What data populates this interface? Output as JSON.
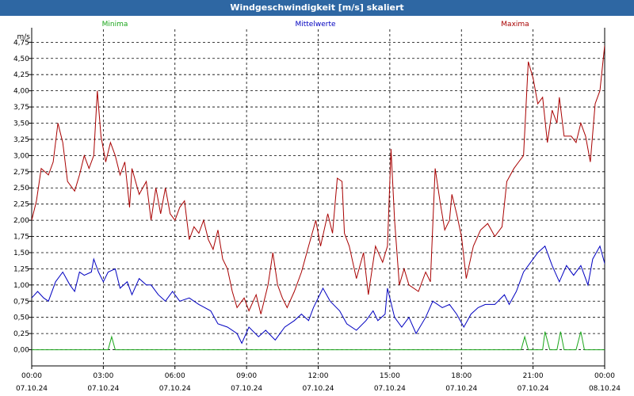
{
  "title": "Windgeschwindigkeit [m/s] skaliert",
  "colors": {
    "titlebar": "#2e67a3",
    "minima": "#1aa51a",
    "mittelwerte": "#0000c0",
    "maxima": "#a80000"
  },
  "chart_data": {
    "type": "line",
    "title": "Windgeschwindigkeit [m/s] skaliert",
    "ylabel": "m/s",
    "ylim": [
      -0.25,
      4.95
    ],
    "xlim": [
      0,
      24
    ],
    "grid": true,
    "legend_placement": "top",
    "y_ticks": [
      0,
      0.25,
      0.5,
      0.75,
      1.0,
      1.25,
      1.5,
      1.75,
      2.0,
      2.25,
      2.5,
      2.75,
      3.0,
      3.25,
      3.5,
      3.75,
      4.0,
      4.25,
      4.5,
      4.75
    ],
    "y_tick_labels": [
      "0,00",
      "0,25",
      "0,50",
      "0,75",
      "1,00",
      "1,25",
      "1,50",
      "1,75",
      "2,00",
      "2,25",
      "2,50",
      "2,75",
      "3,00",
      "3,25",
      "3,50",
      "3,75",
      "4,00",
      "4,25",
      "4,50",
      "4,75"
    ],
    "x_ticks": [
      0,
      3,
      6,
      9,
      12,
      15,
      18,
      21,
      24
    ],
    "x_tick_labels": [
      [
        "00:00",
        "07.10.24"
      ],
      [
        "03:00",
        "07.10.24"
      ],
      [
        "06:00",
        "07.10.24"
      ],
      [
        "09:00",
        "07.10.24"
      ],
      [
        "12:00",
        "07.10.24"
      ],
      [
        "15:00",
        "07.10.24"
      ],
      [
        "18:00",
        "07.10.24"
      ],
      [
        "21:00",
        "07.10.24"
      ],
      [
        "00:00",
        "08.10.24"
      ]
    ],
    "series": [
      {
        "name": "Minima",
        "color": "#1aa51a",
        "points": [
          [
            0,
            0
          ],
          [
            3.2,
            0
          ],
          [
            3.35,
            0.2
          ],
          [
            3.5,
            0
          ],
          [
            20.5,
            0
          ],
          [
            20.65,
            0.2
          ],
          [
            20.8,
            0
          ],
          [
            21.4,
            0
          ],
          [
            21.5,
            0.28
          ],
          [
            21.7,
            0
          ],
          [
            22,
            0
          ],
          [
            22.15,
            0.28
          ],
          [
            22.3,
            0
          ],
          [
            22.8,
            0
          ],
          [
            23,
            0.28
          ],
          [
            23.15,
            0
          ],
          [
            24,
            0
          ]
        ]
      },
      {
        "name": "Mittelwerte",
        "color": "#0000c0",
        "points": [
          [
            0,
            0.8
          ],
          [
            0.25,
            0.9
          ],
          [
            0.5,
            0.8
          ],
          [
            0.7,
            0.75
          ],
          [
            1,
            1.05
          ],
          [
            1.3,
            1.2
          ],
          [
            1.6,
            1.0
          ],
          [
            1.8,
            0.9
          ],
          [
            2,
            1.2
          ],
          [
            2.2,
            1.15
          ],
          [
            2.5,
            1.2
          ],
          [
            2.6,
            1.4
          ],
          [
            2.8,
            1.2
          ],
          [
            3,
            1.05
          ],
          [
            3.2,
            1.2
          ],
          [
            3.5,
            1.25
          ],
          [
            3.7,
            0.95
          ],
          [
            4,
            1.05
          ],
          [
            4.2,
            0.85
          ],
          [
            4.5,
            1.1
          ],
          [
            4.8,
            1.0
          ],
          [
            5,
            1.0
          ],
          [
            5.3,
            0.85
          ],
          [
            5.6,
            0.75
          ],
          [
            5.9,
            0.9
          ],
          [
            6.2,
            0.75
          ],
          [
            6.6,
            0.8
          ],
          [
            7,
            0.7
          ],
          [
            7.5,
            0.6
          ],
          [
            7.8,
            0.4
          ],
          [
            8.2,
            0.35
          ],
          [
            8.6,
            0.25
          ],
          [
            8.8,
            0.1
          ],
          [
            9.1,
            0.35
          ],
          [
            9.5,
            0.2
          ],
          [
            9.8,
            0.3
          ],
          [
            10.2,
            0.15
          ],
          [
            10.6,
            0.35
          ],
          [
            11,
            0.45
          ],
          [
            11.3,
            0.55
          ],
          [
            11.6,
            0.45
          ],
          [
            11.8,
            0.65
          ],
          [
            12.2,
            0.95
          ],
          [
            12.5,
            0.75
          ],
          [
            12.9,
            0.6
          ],
          [
            13.2,
            0.4
          ],
          [
            13.6,
            0.3
          ],
          [
            14,
            0.45
          ],
          [
            14.3,
            0.6
          ],
          [
            14.5,
            0.45
          ],
          [
            14.8,
            0.55
          ],
          [
            14.9,
            0.95
          ],
          [
            15.2,
            0.5
          ],
          [
            15.5,
            0.35
          ],
          [
            15.8,
            0.5
          ],
          [
            16.1,
            0.25
          ],
          [
            16.5,
            0.5
          ],
          [
            16.8,
            0.75
          ],
          [
            17.2,
            0.65
          ],
          [
            17.5,
            0.7
          ],
          [
            17.8,
            0.55
          ],
          [
            18.1,
            0.35
          ],
          [
            18.4,
            0.55
          ],
          [
            18.7,
            0.65
          ],
          [
            19,
            0.7
          ],
          [
            19.4,
            0.7
          ],
          [
            19.8,
            0.85
          ],
          [
            20,
            0.7
          ],
          [
            20.3,
            0.9
          ],
          [
            20.6,
            1.2
          ],
          [
            20.9,
            1.35
          ],
          [
            21.2,
            1.5
          ],
          [
            21.5,
            1.6
          ],
          [
            21.8,
            1.3
          ],
          [
            22.1,
            1.05
          ],
          [
            22.4,
            1.3
          ],
          [
            22.7,
            1.15
          ],
          [
            23,
            1.3
          ],
          [
            23.3,
            1.0
          ],
          [
            23.5,
            1.4
          ],
          [
            23.8,
            1.6
          ],
          [
            24.1,
            1.2
          ],
          [
            24.5,
            0.95
          ]
        ]
      },
      {
        "name": "Maxima",
        "color": "#a80000",
        "points": [
          [
            0,
            2.0
          ],
          [
            0.2,
            2.3
          ],
          [
            0.4,
            2.8
          ],
          [
            0.7,
            2.7
          ],
          [
            0.9,
            2.9
          ],
          [
            1.1,
            3.5
          ],
          [
            1.3,
            3.2
          ],
          [
            1.5,
            2.6
          ],
          [
            1.8,
            2.45
          ],
          [
            2,
            2.7
          ],
          [
            2.2,
            3.0
          ],
          [
            2.4,
            2.8
          ],
          [
            2.6,
            3.0
          ],
          [
            2.75,
            4.0
          ],
          [
            2.9,
            3.3
          ],
          [
            3.1,
            2.9
          ],
          [
            3.3,
            3.2
          ],
          [
            3.5,
            3.0
          ],
          [
            3.7,
            2.7
          ],
          [
            3.9,
            2.9
          ],
          [
            4.1,
            2.2
          ],
          [
            4.2,
            2.8
          ],
          [
            4.5,
            2.4
          ],
          [
            4.8,
            2.6
          ],
          [
            5,
            2.0
          ],
          [
            5.2,
            2.5
          ],
          [
            5.4,
            2.1
          ],
          [
            5.6,
            2.5
          ],
          [
            5.8,
            2.1
          ],
          [
            6,
            2.0
          ],
          [
            6.2,
            2.2
          ],
          [
            6.4,
            2.3
          ],
          [
            6.6,
            1.7
          ],
          [
            6.8,
            1.9
          ],
          [
            7,
            1.8
          ],
          [
            7.2,
            2.0
          ],
          [
            7.4,
            1.7
          ],
          [
            7.6,
            1.55
          ],
          [
            7.8,
            1.85
          ],
          [
            8,
            1.4
          ],
          [
            8.2,
            1.25
          ],
          [
            8.4,
            0.9
          ],
          [
            8.6,
            0.65
          ],
          [
            8.9,
            0.8
          ],
          [
            9.1,
            0.6
          ],
          [
            9.4,
            0.85
          ],
          [
            9.6,
            0.55
          ],
          [
            9.9,
            1.0
          ],
          [
            10.1,
            1.5
          ],
          [
            10.3,
            1.0
          ],
          [
            10.5,
            0.8
          ],
          [
            10.7,
            0.65
          ],
          [
            11,
            0.9
          ],
          [
            11.3,
            1.2
          ],
          [
            11.6,
            1.6
          ],
          [
            11.9,
            2.0
          ],
          [
            12.1,
            1.6
          ],
          [
            12.4,
            2.1
          ],
          [
            12.6,
            1.8
          ],
          [
            12.8,
            2.65
          ],
          [
            13,
            2.6
          ],
          [
            13.1,
            1.8
          ],
          [
            13.3,
            1.6
          ],
          [
            13.6,
            1.1
          ],
          [
            13.9,
            1.5
          ],
          [
            14.1,
            0.85
          ],
          [
            14.4,
            1.6
          ],
          [
            14.7,
            1.35
          ],
          [
            14.9,
            1.6
          ],
          [
            15.05,
            3.1
          ],
          [
            15.2,
            2.0
          ],
          [
            15.4,
            1.0
          ],
          [
            15.6,
            1.25
          ],
          [
            15.8,
            1.0
          ],
          [
            16.2,
            0.9
          ],
          [
            16.5,
            1.2
          ],
          [
            16.7,
            1.05
          ],
          [
            16.9,
            2.8
          ],
          [
            17.1,
            2.3
          ],
          [
            17.3,
            1.85
          ],
          [
            17.5,
            2.0
          ],
          [
            17.6,
            2.4
          ],
          [
            17.8,
            2.1
          ],
          [
            18,
            1.75
          ],
          [
            18.2,
            1.1
          ],
          [
            18.5,
            1.6
          ],
          [
            18.8,
            1.85
          ],
          [
            19.1,
            1.95
          ],
          [
            19.4,
            1.75
          ],
          [
            19.7,
            1.9
          ],
          [
            19.9,
            2.6
          ],
          [
            20.2,
            2.8
          ],
          [
            20.4,
            2.9
          ],
          [
            20.6,
            3.0
          ],
          [
            20.8,
            4.45
          ],
          [
            21,
            4.2
          ],
          [
            21.2,
            3.8
          ],
          [
            21.4,
            3.9
          ],
          [
            21.6,
            3.2
          ],
          [
            21.8,
            3.7
          ],
          [
            22,
            3.5
          ],
          [
            22.1,
            3.9
          ],
          [
            22.3,
            3.3
          ],
          [
            22.6,
            3.3
          ],
          [
            22.8,
            3.2
          ],
          [
            23,
            3.5
          ],
          [
            23.2,
            3.3
          ],
          [
            23.4,
            2.9
          ],
          [
            23.6,
            3.8
          ],
          [
            23.8,
            4.0
          ],
          [
            24,
            4.7
          ],
          [
            24.2,
            4.3
          ],
          [
            24.4,
            3.2
          ],
          [
            24.6,
            2.8
          ],
          [
            24.8,
            2.4
          ]
        ]
      }
    ]
  }
}
